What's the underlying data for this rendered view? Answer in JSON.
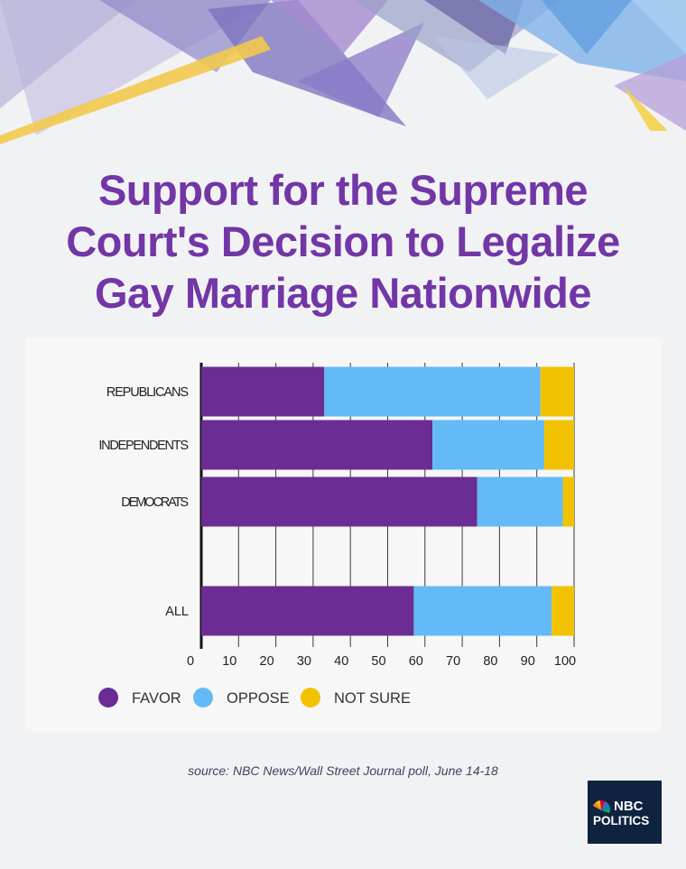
{
  "title_lines": [
    "Support for the Supreme",
    "Court's Decision to Legalize",
    "Gay Marriage Nationwide"
  ],
  "source": "source: NBC News/Wall Street Journal poll, June 14-18",
  "logo": {
    "line1": "NBC",
    "line2": "POLITICS",
    "icon": "peacock-icon"
  },
  "colors": {
    "favor": "#6b2c94",
    "oppose": "#63baf6",
    "not_sure": "#f2c200",
    "title": "#7236a6",
    "background": "#f1f2f4"
  },
  "chart_data": {
    "type": "bar",
    "orientation": "horizontal",
    "stacked": true,
    "title": "Support for the Supreme Court's Decision to Legalize Gay Marriage Nationwide",
    "categories": [
      "REPUBLICANS",
      "INDEPENDENTS",
      "DEMOCRATS",
      "ALL"
    ],
    "series": [
      {
        "name": "FAVOR",
        "values": [
          33,
          62,
          74,
          57
        ]
      },
      {
        "name": "OPPOSE",
        "values": [
          58,
          30,
          23,
          37
        ]
      },
      {
        "name": "NOT SURE",
        "values": [
          9,
          8,
          3,
          6
        ]
      }
    ],
    "xlim": [
      0,
      100
    ],
    "xticks": [
      0,
      10,
      20,
      30,
      40,
      50,
      60,
      70,
      80,
      90,
      100
    ],
    "grid": true,
    "legend_position": "bottom-left"
  }
}
